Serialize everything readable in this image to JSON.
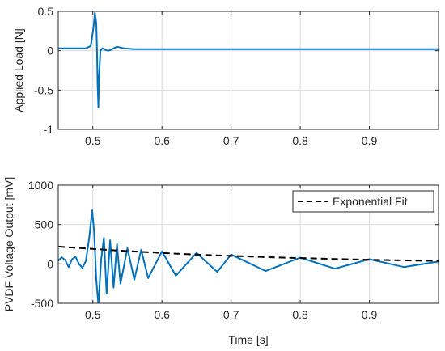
{
  "chart_data": [
    {
      "type": "line",
      "ylabel": "Applied Load [N]",
      "xlabel": "",
      "xlim": [
        0.45,
        1.0
      ],
      "ylim": [
        -1,
        0.5
      ],
      "xticks": [
        0.5,
        0.6,
        0.7,
        0.8,
        0.9
      ],
      "xtick_labels": [
        "0.5",
        "0.6",
        "0.7",
        "0.8",
        "0.9"
      ],
      "yticks": [
        -1,
        -0.5,
        0,
        0.5
      ],
      "ytick_labels": [
        "-1",
        "-0.5",
        "0",
        "0.5"
      ],
      "grid": true,
      "series": [
        {
          "color": "#0072BD",
          "x": [
            0.45,
            0.49,
            0.497,
            0.501,
            0.503,
            0.505,
            0.506,
            0.507,
            0.508,
            0.509,
            0.511,
            0.514,
            0.518,
            0.522,
            0.526,
            0.53,
            0.535,
            0.545,
            0.56,
            0.6,
            0.7,
            0.8,
            0.9,
            1.0
          ],
          "y": [
            0.03,
            0.03,
            0.06,
            0.3,
            0.48,
            0.35,
            0.0,
            -0.45,
            -0.72,
            -0.35,
            0.0,
            0.03,
            0.01,
            0.0,
            0.01,
            0.03,
            0.05,
            0.03,
            0.02,
            0.02,
            0.02,
            0.02,
            0.02,
            0.02
          ]
        }
      ]
    },
    {
      "type": "line",
      "ylabel": "PVDF Voltage Output [mV]",
      "xlabel": "Time [s]",
      "xlim": [
        0.45,
        1.0
      ],
      "ylim": [
        -500,
        1000
      ],
      "xticks": [
        0.5,
        0.6,
        0.7,
        0.8,
        0.9
      ],
      "xtick_labels": [
        "0.5",
        "0.6",
        "0.7",
        "0.8",
        "0.9"
      ],
      "yticks": [
        -500,
        0,
        500,
        1000
      ],
      "ytick_labels": [
        "-500",
        "0",
        "500",
        "1000"
      ],
      "grid": true,
      "legend": {
        "location": "top-right",
        "entries": [
          "Exponential Fit"
        ]
      },
      "series": [
        {
          "color": "#0072BD",
          "x": [
            0.45,
            0.455,
            0.46,
            0.465,
            0.47,
            0.475,
            0.48,
            0.485,
            0.49,
            0.495,
            0.499,
            0.502,
            0.505,
            0.508,
            0.512,
            0.516,
            0.52,
            0.525,
            0.53,
            0.535,
            0.54,
            0.55,
            0.56,
            0.57,
            0.58,
            0.6,
            0.62,
            0.65,
            0.68,
            0.7,
            0.75,
            0.8,
            0.85,
            0.9,
            0.95,
            1.0
          ],
          "y": [
            40,
            85,
            50,
            -40,
            60,
            90,
            0,
            -50,
            40,
            350,
            680,
            400,
            -200,
            -520,
            50,
            330,
            -380,
            300,
            -300,
            250,
            -250,
            200,
            -200,
            180,
            -180,
            160,
            -150,
            140,
            -100,
            120,
            -90,
            80,
            -60,
            60,
            -40,
            30
          ]
        },
        {
          "name": "Exponential Fit",
          "color": "#000000",
          "dashed": true,
          "x": [
            0.45,
            0.5,
            0.55,
            0.6,
            0.65,
            0.7,
            0.75,
            0.8,
            0.85,
            0.9,
            0.95,
            1.0
          ],
          "y": [
            220,
            190,
            163,
            139,
            119,
            102,
            87,
            74,
            63,
            53,
            45,
            38
          ]
        }
      ]
    }
  ]
}
